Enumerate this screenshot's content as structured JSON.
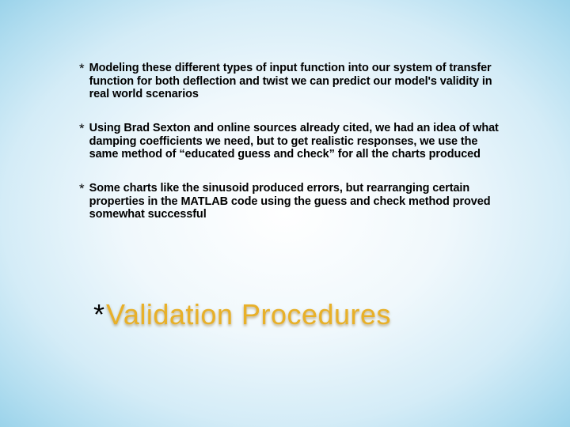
{
  "slide": {
    "background_gradient": {
      "type": "radial",
      "center": "#ffffff",
      "mid": "#d4ecf7",
      "edge": "#9bd3ea"
    },
    "bullet_glyph": "*",
    "bullet_color": "#000000",
    "bullet_fontsize_pt": 14.5,
    "bullet_font_weight": "bold",
    "bullets": [
      "Modeling these different types of input function into our system of transfer function for both deflection and twist we can predict our model's validity in real world scenarios",
      "Using Brad Sexton and online sources already cited, we had an idea of what damping coefficients we need, but to get realistic responses, we use the same method of “educated guess and check” for all the charts produced",
      "Some charts like the sinusoid produced errors, but rearranging certain properties in the MATLAB code using the guess and check method proved somewhat successful"
    ],
    "title_glyph": "*",
    "title": "Validation Procedures",
    "title_color": "#e8b028",
    "title_shadow": "rgba(140,100,20,0.5)",
    "title_fontsize_pt": 36
  }
}
